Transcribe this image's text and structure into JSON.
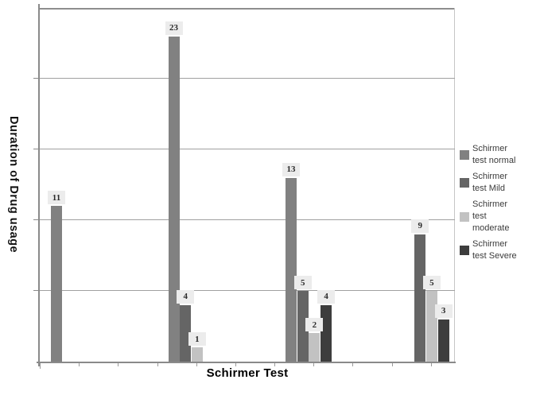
{
  "chart_data": {
    "type": "bar",
    "title": "",
    "xlabel": "Schirmer Test",
    "ylabel": "Duration of Drug usage",
    "categories": [
      "",
      "",
      "",
      ""
    ],
    "series": [
      {
        "name": "Schirmer test normal",
        "color": "#818181",
        "values": [
          11,
          23,
          13,
          0
        ]
      },
      {
        "name": "Schirmer test Mild",
        "color": "#656565",
        "values": [
          0,
          4,
          5,
          9
        ]
      },
      {
        "name": "Schirmer test moderate",
        "color": "#c2c2c2",
        "values": [
          0,
          1,
          2,
          5
        ]
      },
      {
        "name": "Schirmer test Severe",
        "color": "#3d3d3d",
        "values": [
          0,
          0,
          4,
          3
        ]
      }
    ],
    "ylim": [
      0,
      25
    ],
    "gridline_step": 5,
    "grid": true,
    "y_tick_labels_visible": false,
    "x_tick_labels_visible": false,
    "data_labels_visible": true,
    "legend_position": "right"
  },
  "legend": {
    "entries": [
      {
        "label": "Schirmer test normal",
        "lines": [
          "Schirmer",
          "test normal"
        ],
        "color": "#818181"
      },
      {
        "label": "Schirmer test Mild",
        "lines": [
          "Schirmer",
          "test Mild"
        ],
        "color": "#656565"
      },
      {
        "label": "Schirmer test moderate",
        "lines": [
          "Schirmer",
          "test",
          "moderate"
        ],
        "color": "#c2c2c2"
      },
      {
        "label": "Schirmer test Severe",
        "lines": [
          "Schirmer",
          "test Severe"
        ],
        "color": "#3d3d3d"
      }
    ]
  },
  "colors": {
    "gridline": "#a0a0a0",
    "axis": "#8a8a8a",
    "label_box_bg": "#ececec",
    "label_text": "#2b2b2b"
  }
}
